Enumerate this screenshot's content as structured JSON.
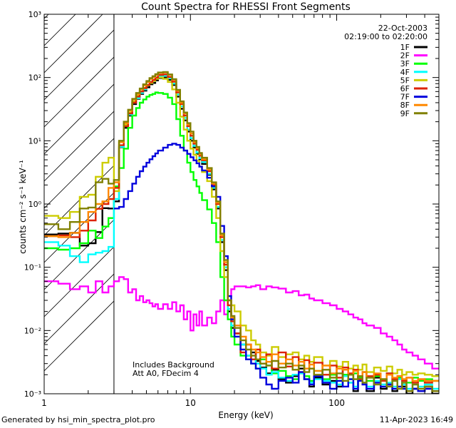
{
  "chart_data": {
    "type": "line",
    "title": "Count Spectra for RHESSI Front Segments",
    "xlabel": "Energy (keV)",
    "ylabel": "counts cm⁻² s⁻¹ keV⁻¹",
    "xscale": "log",
    "yscale": "log",
    "xlim": [
      1,
      500
    ],
    "ylim": [
      0.001,
      1000
    ],
    "x_ticks": [
      {
        "value": 1,
        "label": "1"
      },
      {
        "value": 10,
        "label": "10"
      },
      {
        "value": 100,
        "label": "100"
      }
    ],
    "y_ticks": [
      {
        "value": 0.001,
        "label": "10⁻³"
      },
      {
        "value": 0.01,
        "label": "10⁻²"
      },
      {
        "value": 0.1,
        "label": "10⁻¹"
      },
      {
        "value": 1,
        "label": "10⁰"
      },
      {
        "value": 10,
        "label": "10¹"
      },
      {
        "value": 100,
        "label": "10²"
      },
      {
        "value": 1000,
        "label": "10³"
      }
    ],
    "date": "22-Oct-2003",
    "time_range": "02:19:00 to 02:20:00",
    "hatched_region_max_energy": 3,
    "annotations": [
      "Includes Background",
      "Att A0, FDecim 4"
    ],
    "legend_position": "top-right",
    "energy_bins": [
      1,
      1.25,
      1.5,
      1.75,
      2,
      2.25,
      2.5,
      2.75,
      3,
      3.25,
      3.5,
      3.75,
      4,
      4.25,
      4.5,
      4.75,
      5,
      5.25,
      5.5,
      5.75,
      6,
      6.5,
      7,
      7.5,
      8,
      8.5,
      9,
      9.5,
      10,
      10.5,
      11,
      11.5,
      12,
      13,
      14,
      15,
      16,
      17,
      18,
      19,
      20,
      22,
      24,
      26,
      28,
      30,
      33,
      36,
      40,
      45,
      50,
      55,
      60,
      65,
      70,
      80,
      90,
      100,
      110,
      120,
      130,
      140,
      150,
      160,
      180,
      200,
      220,
      240,
      260,
      280,
      300,
      330,
      360,
      400,
      450,
      500
    ],
    "series": [
      {
        "name": "1F",
        "color": "#000000",
        "values": [
          0.33,
          0.34,
          0.35,
          0.22,
          0.24,
          0.36,
          0.86,
          0.85,
          1.1,
          7.9,
          16,
          25,
          38,
          46,
          55,
          62,
          70,
          78,
          82,
          90,
          98,
          100,
          92,
          76,
          50,
          32,
          21,
          14,
          10,
          7.8,
          6.2,
          5.1,
          4.3,
          2.9,
          1.7,
          0.85,
          0.25,
          0.09,
          0.02,
          0.011,
          0.009,
          0.006,
          0.004,
          0.0045,
          0.0033,
          0.0026,
          0.0021,
          0.0024,
          0.0017,
          0.0015,
          0.0019,
          0.0025,
          0.0017,
          0.0013,
          0.0018,
          0.0014,
          0.0016,
          0.0013,
          0.0024,
          0.0015,
          0.0011,
          0.0019,
          0.0015,
          0.0011,
          0.0018,
          0.0012,
          0.0014,
          0.0011,
          0.0019,
          0.0013,
          0.001,
          0.0012,
          0.0011,
          0.0013,
          0.001
        ]
      },
      {
        "name": "2F",
        "color": "#ff00ff",
        "values": [
          0.06,
          0.055,
          0.045,
          0.05,
          0.04,
          0.06,
          0.04,
          0.05,
          0.06,
          0.07,
          0.065,
          0.04,
          0.045,
          0.03,
          0.035,
          0.028,
          0.03,
          0.027,
          0.024,
          0.026,
          0.022,
          0.026,
          0.022,
          0.028,
          0.02,
          0.025,
          0.015,
          0.02,
          0.01,
          0.018,
          0.012,
          0.02,
          0.012,
          0.016,
          0.013,
          0.02,
          0.03,
          0.018,
          0.035,
          0.045,
          0.05,
          0.05,
          0.048,
          0.05,
          0.052,
          0.045,
          0.05,
          0.048,
          0.046,
          0.04,
          0.042,
          0.036,
          0.037,
          0.032,
          0.03,
          0.027,
          0.025,
          0.022,
          0.02,
          0.018,
          0.016,
          0.015,
          0.013,
          0.012,
          0.011,
          0.009,
          0.008,
          0.007,
          0.006,
          0.005,
          0.0045,
          0.004,
          0.0035,
          0.003,
          0.0025
        ]
      },
      {
        "name": "3F",
        "color": "#00ff00",
        "values": [
          0.2,
          0.19,
          0.2,
          0.24,
          0.38,
          0.29,
          0.44,
          0.6,
          1.9,
          3.7,
          7.5,
          16,
          25,
          33,
          40,
          45,
          50,
          53,
          55,
          58,
          57,
          55,
          48,
          38,
          22,
          12,
          7.0,
          4.5,
          3.2,
          2.4,
          1.9,
          1.5,
          1.15,
          0.82,
          0.5,
          0.25,
          0.07,
          0.03,
          0.015,
          0.008,
          0.006,
          0.004,
          0.0035,
          0.003,
          0.0025,
          0.0035,
          0.0028,
          0.0021,
          0.0023,
          0.0019,
          0.0017,
          0.0021,
          0.0019,
          0.0016,
          0.0023,
          0.0017,
          0.002,
          0.0016,
          0.002,
          0.0017,
          0.0021,
          0.0018,
          0.0022,
          0.0016,
          0.0019,
          0.0017,
          0.0021,
          0.0016,
          0.0018,
          0.0017,
          0.0015,
          0.0018,
          0.0016,
          0.0017,
          0.0016
        ]
      },
      {
        "name": "4F",
        "color": "#00ffff",
        "values": [
          0.25,
          0.22,
          0.15,
          0.12,
          0.16,
          0.17,
          0.18,
          0.21,
          1.2,
          8.0,
          17,
          26,
          40,
          47,
          57,
          65,
          75,
          82,
          88,
          96,
          105,
          107,
          97,
          80,
          54,
          35,
          23,
          15,
          11,
          8.3,
          6.5,
          5.3,
          4.6,
          3.0,
          1.8,
          0.9,
          0.27,
          0.1,
          0.022,
          0.012,
          0.008,
          0.006,
          0.004,
          0.0035,
          0.003,
          0.0025,
          0.002,
          0.0022,
          0.0018,
          0.0016,
          0.002,
          0.0021,
          0.0017,
          0.0015,
          0.0017,
          0.0016,
          0.0015,
          0.0014,
          0.0019,
          0.0015,
          0.0013,
          0.0017,
          0.0015,
          0.0013,
          0.0016,
          0.0014,
          0.0015,
          0.0013,
          0.0017,
          0.0014,
          0.0012,
          0.0014,
          0.0013,
          0.0014,
          0.0012
        ]
      },
      {
        "name": "5F",
        "color": "#cccc00",
        "values": [
          0.65,
          0.6,
          0.75,
          1.3,
          1.4,
          2.7,
          4.5,
          5.4,
          1.6,
          9.5,
          18,
          28,
          42,
          52,
          60,
          68,
          75,
          82,
          88,
          95,
          100,
          95,
          85,
          65,
          40,
          24,
          15,
          10,
          7.5,
          6.0,
          4.8,
          3.9,
          3.2,
          2.3,
          1.3,
          0.6,
          0.18,
          0.07,
          0.03,
          0.025,
          0.02,
          0.012,
          0.01,
          0.007,
          0.006,
          0.0045,
          0.004,
          0.0055,
          0.0038,
          0.0042,
          0.0045,
          0.0035,
          0.004,
          0.0032,
          0.0038,
          0.0028,
          0.0033,
          0.0027,
          0.0032,
          0.0025,
          0.0028,
          0.0024,
          0.0029,
          0.0022,
          0.0026,
          0.0023,
          0.0027,
          0.0021,
          0.0024,
          0.002,
          0.0022,
          0.002,
          0.0021,
          0.002,
          0.0019
        ]
      },
      {
        "name": "6F",
        "color": "#dd2200",
        "values": [
          0.31,
          0.32,
          0.3,
          0.38,
          0.55,
          0.84,
          1.0,
          1.2,
          1.8,
          8.5,
          17,
          27,
          40,
          50,
          60,
          68,
          76,
          85,
          92,
          100,
          110,
          112,
          102,
          86,
          58,
          38,
          25,
          17,
          12,
          9.0,
          7.2,
          5.8,
          4.9,
          3.3,
          2.0,
          1.0,
          0.3,
          0.11,
          0.025,
          0.014,
          0.009,
          0.0045,
          0.006,
          0.0035,
          0.005,
          0.003,
          0.0042,
          0.0025,
          0.0045,
          0.0027,
          0.0038,
          0.0022,
          0.0034,
          0.0025,
          0.0031,
          0.002,
          0.0028,
          0.0018,
          0.0026,
          0.0021,
          0.0024,
          0.0017,
          0.0022,
          0.0019,
          0.002,
          0.0016,
          0.0021,
          0.0017,
          0.0019,
          0.0016,
          0.0018,
          0.0015,
          0.0017,
          0.0015,
          0.0016
        ]
      },
      {
        "name": "7F",
        "color": "#0000dd",
        "values": [
          null,
          null,
          null,
          null,
          null,
          null,
          null,
          null,
          0.85,
          0.9,
          1.2,
          1.6,
          2.1,
          2.7,
          3.3,
          3.9,
          4.5,
          5.1,
          5.7,
          6.3,
          7.0,
          7.8,
          8.6,
          9.0,
          8.6,
          7.8,
          7.0,
          6.2,
          5.5,
          4.9,
          4.4,
          3.9,
          3.4,
          2.6,
          1.9,
          1.3,
          0.45,
          0.15,
          0.035,
          0.015,
          0.008,
          0.005,
          0.0035,
          0.003,
          0.0025,
          0.0018,
          0.0014,
          0.0012,
          0.0016,
          0.0018,
          0.0015,
          0.0022,
          0.0017,
          0.0014,
          0.0019,
          0.0015,
          0.0012,
          0.0016,
          0.0013,
          0.0017,
          0.0012,
          0.0016,
          0.0014,
          0.0012,
          0.0015,
          0.0013,
          0.0014,
          0.0012,
          0.0013,
          0.0012,
          0.0011,
          0.0012,
          0.0011,
          0.0012,
          0.0011
        ]
      },
      {
        "name": "8F",
        "color": "#ff8800",
        "values": [
          0.31,
          0.3,
          0.35,
          0.52,
          0.75,
          1.0,
          1.1,
          1.8,
          2.2,
          9.5,
          19,
          30,
          45,
          55,
          65,
          75,
          85,
          95,
          102,
          110,
          118,
          120,
          110,
          92,
          62,
          40,
          27,
          18,
          13,
          9.5,
          7.6,
          6.1,
          5.1,
          3.5,
          2.1,
          1.05,
          0.32,
          0.12,
          0.03,
          0.016,
          0.012,
          0.008,
          0.006,
          0.005,
          0.0045,
          0.0038,
          0.0032,
          0.0042,
          0.003,
          0.0035,
          0.0028,
          0.0032,
          0.0025,
          0.0029,
          0.0023,
          0.0028,
          0.0021,
          0.0025,
          0.0024,
          0.002,
          0.0023,
          0.0019,
          0.0022,
          0.0018,
          0.0021,
          0.0017,
          0.002,
          0.0018,
          0.0019,
          0.0017,
          0.0018,
          0.0016,
          0.0017,
          0.0016,
          0.0016
        ]
      },
      {
        "name": "9F",
        "color": "#808000",
        "values": [
          0.48,
          0.4,
          0.52,
          0.85,
          0.88,
          2.2,
          2.5,
          2.1,
          2.4,
          10,
          20,
          31,
          46,
          57,
          67,
          78,
          88,
          98,
          105,
          113,
          120,
          122,
          112,
          94,
          64,
          42,
          28,
          19,
          14,
          10,
          8.0,
          6.4,
          5.4,
          3.7,
          2.2,
          1.1,
          0.34,
          0.13,
          0.03,
          0.017,
          0.011,
          0.007,
          0.005,
          0.004,
          0.0035,
          0.003,
          0.0028,
          0.0033,
          0.0026,
          0.003,
          0.0024,
          0.0028,
          0.0022,
          0.0025,
          0.002,
          0.0024,
          0.0018,
          0.0021,
          0.0016,
          0.002,
          0.0017,
          0.0019,
          0.0015,
          0.0018,
          0.0014,
          0.0017,
          0.0013,
          0.0016,
          0.0012,
          0.0015,
          0.0011,
          0.0014,
          0.0012,
          0.0013,
          0.0011
        ]
      }
    ]
  },
  "footer": {
    "generated_by": "Generated by hsi_min_spectra_plot.pro",
    "timestamp": "11-Apr-2023 16:49"
  }
}
